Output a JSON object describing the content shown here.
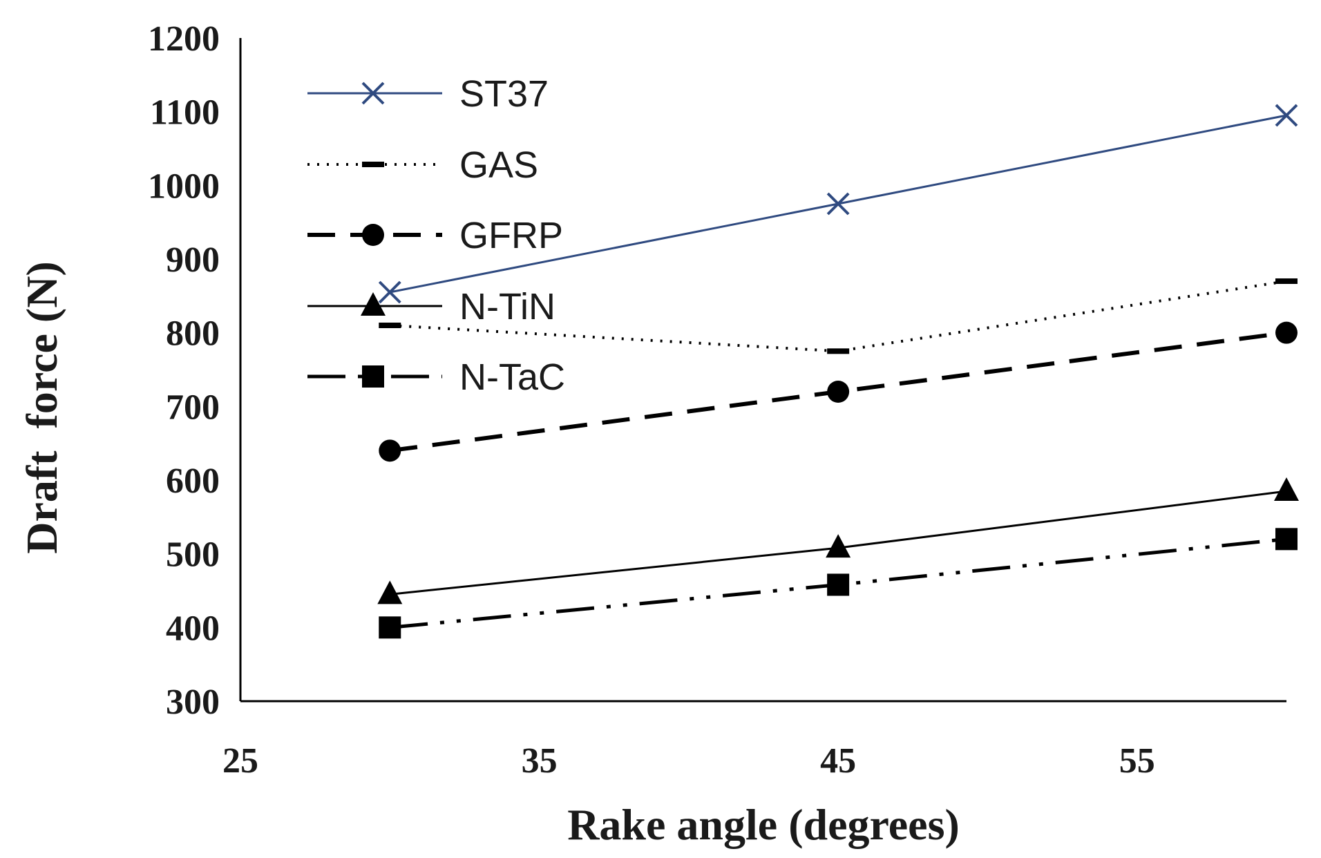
{
  "chart_data": {
    "type": "line",
    "title": "",
    "xlabel": "Rake angle (degrees)",
    "ylabel": "Draft  force (N)",
    "xlim": [
      25,
      60
    ],
    "ylim": [
      300,
      1200
    ],
    "x_ticks": [
      "25",
      "35",
      "45",
      "55"
    ],
    "y_ticks": [
      "300",
      "400",
      "500",
      "600",
      "700",
      "800",
      "900",
      "1000",
      "1100",
      "1200"
    ],
    "legend_position": "top-left",
    "x": [
      30,
      45,
      60
    ],
    "series": [
      {
        "name": "ST37",
        "values": [
          855,
          975,
          1095
        ],
        "color": "#2f4a80",
        "marker": "x",
        "dash": "solid"
      },
      {
        "name": "GAS",
        "values": [
          810,
          775,
          870
        ],
        "color": "#000000",
        "marker": "dash",
        "dash": "dotted"
      },
      {
        "name": "GFRP",
        "values": [
          640,
          720,
          800
        ],
        "color": "#000000",
        "marker": "circle",
        "dash": "dashed"
      },
      {
        "name": "N-TiN",
        "values": [
          445,
          508,
          585
        ],
        "color": "#000000",
        "marker": "triangle",
        "dash": "solid"
      },
      {
        "name": "N-TaC",
        "values": [
          400,
          458,
          520
        ],
        "color": "#000000",
        "marker": "square",
        "dash": "dashdotdot"
      }
    ]
  }
}
